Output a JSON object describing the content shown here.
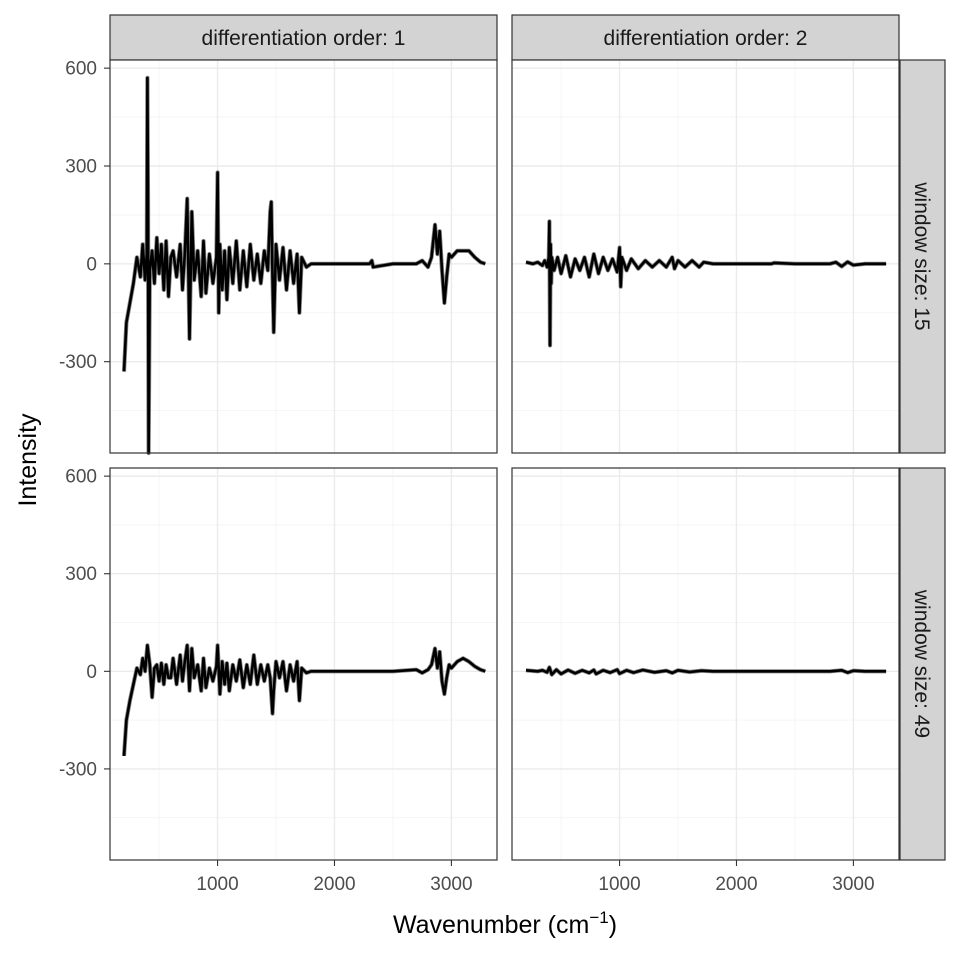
{
  "chart_data": {
    "type": "line",
    "facet_layout": "grid",
    "xlabel": "Wavenumber (cm",
    "xlabel_superscript": "−1",
    "xlabel_close": ")",
    "ylabel": "Intensity",
    "column_strips": [
      "differentiation order: 1",
      "differentiation order: 2"
    ],
    "row_strips": [
      "window size: 15",
      "window size: 49"
    ],
    "x_ticks": [
      1000,
      2000,
      3000
    ],
    "y_ticks": [
      -300,
      0,
      300,
      600
    ],
    "x_tick_labels": [
      "1000",
      "2000",
      "3000"
    ],
    "y_tick_labels": [
      "-300",
      "0",
      "300",
      "600"
    ],
    "xlim": [
      80,
      3390
    ],
    "ylim": [
      -580,
      625
    ],
    "grid": true,
    "line_color": "#000000",
    "shadow_color": "#707070",
    "panels": [
      {
        "row": 0,
        "col": 0,
        "x": [
          200,
          220,
          250,
          280,
          310,
          340,
          360,
          380,
          395,
          400,
          405,
          410,
          415,
          420,
          440,
          460,
          480,
          500,
          520,
          540,
          560,
          580,
          600,
          620,
          650,
          680,
          700,
          720,
          740,
          760,
          780,
          800,
          830,
          860,
          880,
          900,
          930,
          960,
          990,
          1000,
          1010,
          1020,
          1040,
          1060,
          1080,
          1100,
          1130,
          1160,
          1190,
          1220,
          1250,
          1280,
          1310,
          1340,
          1370,
          1400,
          1430,
          1450,
          1460,
          1470,
          1480,
          1500,
          1530,
          1560,
          1590,
          1620,
          1650,
          1680,
          1700,
          1720,
          1760,
          1800,
          1850,
          2000,
          2300,
          2320,
          2330,
          2500,
          2700,
          2750,
          2800,
          2830,
          2860,
          2880,
          2900,
          2920,
          2940,
          2960,
          2980,
          3000,
          3050,
          3100,
          3150,
          3200,
          3250,
          3290
        ],
        "y": [
          -330,
          -180,
          -120,
          -60,
          20,
          -40,
          60,
          -50,
          30,
          570,
          200,
          -580,
          -300,
          -20,
          40,
          -60,
          80,
          -30,
          60,
          -80,
          70,
          -100,
          20,
          40,
          -40,
          60,
          -80,
          30,
          200,
          -230,
          160,
          -50,
          40,
          -100,
          70,
          -90,
          30,
          -60,
          20,
          280,
          -150,
          60,
          -80,
          40,
          -110,
          50,
          -60,
          70,
          -80,
          40,
          -70,
          60,
          -50,
          30,
          -60,
          40,
          -20,
          160,
          190,
          -40,
          -210,
          60,
          -50,
          50,
          -80,
          40,
          -60,
          30,
          -150,
          20,
          -10,
          0,
          0,
          0,
          0,
          10,
          -10,
          0,
          0,
          10,
          -10,
          20,
          120,
          30,
          100,
          -20,
          -120,
          -40,
          30,
          20,
          40,
          40,
          40,
          20,
          5,
          0
        ]
      },
      {
        "row": 0,
        "col": 1,
        "x": [
          200,
          260,
          300,
          340,
          360,
          380,
          395,
          400,
          405,
          410,
          415,
          420,
          440,
          470,
          500,
          540,
          580,
          620,
          660,
          700,
          740,
          780,
          820,
          860,
          900,
          940,
          980,
          1000,
          1010,
          1020,
          1060,
          1100,
          1160,
          1220,
          1280,
          1340,
          1400,
          1450,
          1470,
          1500,
          1560,
          1620,
          1680,
          1720,
          1800,
          2000,
          2300,
          2320,
          2500,
          2800,
          2850,
          2900,
          2950,
          3000,
          3100,
          3200,
          3280
        ],
        "y": [
          5,
          0,
          5,
          -5,
          10,
          -10,
          20,
          130,
          -250,
          60,
          -60,
          20,
          -20,
          20,
          -30,
          25,
          -40,
          15,
          -20,
          20,
          -40,
          30,
          -30,
          20,
          -20,
          15,
          -25,
          50,
          -70,
          20,
          -20,
          15,
          -15,
          10,
          -10,
          10,
          -10,
          20,
          -15,
          10,
          -10,
          10,
          -10,
          5,
          0,
          0,
          0,
          3,
          0,
          0,
          5,
          -8,
          6,
          -4,
          0,
          0,
          0
        ]
      },
      {
        "row": 1,
        "col": 0,
        "x": [
          200,
          220,
          250,
          280,
          310,
          340,
          360,
          380,
          400,
          420,
          440,
          460,
          480,
          500,
          520,
          540,
          560,
          580,
          600,
          620,
          650,
          680,
          700,
          720,
          740,
          760,
          780,
          800,
          830,
          860,
          880,
          900,
          930,
          960,
          990,
          1000,
          1020,
          1040,
          1060,
          1080,
          1100,
          1130,
          1160,
          1190,
          1220,
          1250,
          1280,
          1310,
          1340,
          1370,
          1400,
          1430,
          1450,
          1470,
          1480,
          1500,
          1530,
          1560,
          1590,
          1620,
          1650,
          1680,
          1700,
          1720,
          1760,
          1800,
          1850,
          2000,
          2300,
          2500,
          2700,
          2750,
          2800,
          2830,
          2860,
          2880,
          2900,
          2920,
          2940,
          2960,
          2980,
          3000,
          3050,
          3100,
          3150,
          3200,
          3250,
          3290
        ],
        "y": [
          -260,
          -150,
          -90,
          -40,
          10,
          -10,
          40,
          0,
          80,
          20,
          -80,
          10,
          20,
          -30,
          25,
          -40,
          20,
          -20,
          -20,
          40,
          -40,
          50,
          -30,
          30,
          80,
          -60,
          70,
          -20,
          20,
          -60,
          40,
          -50,
          10,
          -30,
          15,
          80,
          -70,
          30,
          -40,
          25,
          -60,
          20,
          -30,
          35,
          -50,
          20,
          -40,
          50,
          -40,
          20,
          -30,
          20,
          -20,
          -130,
          -60,
          30,
          -20,
          30,
          -60,
          20,
          -30,
          30,
          -90,
          10,
          -5,
          0,
          0,
          0,
          0,
          0,
          5,
          -5,
          5,
          20,
          70,
          10,
          60,
          -30,
          -70,
          -20,
          20,
          10,
          30,
          40,
          30,
          15,
          5,
          0
        ]
      },
      {
        "row": 1,
        "col": 1,
        "x": [
          200,
          300,
          340,
          380,
          400,
          420,
          460,
          500,
          560,
          620,
          680,
          740,
          780,
          800,
          860,
          920,
          980,
          1000,
          1060,
          1120,
          1200,
          1300,
          1400,
          1450,
          1500,
          1600,
          1700,
          1800,
          2000,
          2300,
          2500,
          2800,
          2900,
          2950,
          3000,
          3100,
          3200,
          3280
        ],
        "y": [
          3,
          0,
          3,
          -3,
          12,
          -10,
          5,
          -8,
          4,
          -6,
          3,
          -5,
          4,
          -8,
          3,
          -4,
          5,
          -7,
          3,
          -4,
          4,
          -3,
          2,
          -5,
          3,
          -2,
          2,
          0,
          0,
          0,
          0,
          0,
          3,
          -4,
          2,
          0,
          0,
          0
        ]
      }
    ]
  }
}
